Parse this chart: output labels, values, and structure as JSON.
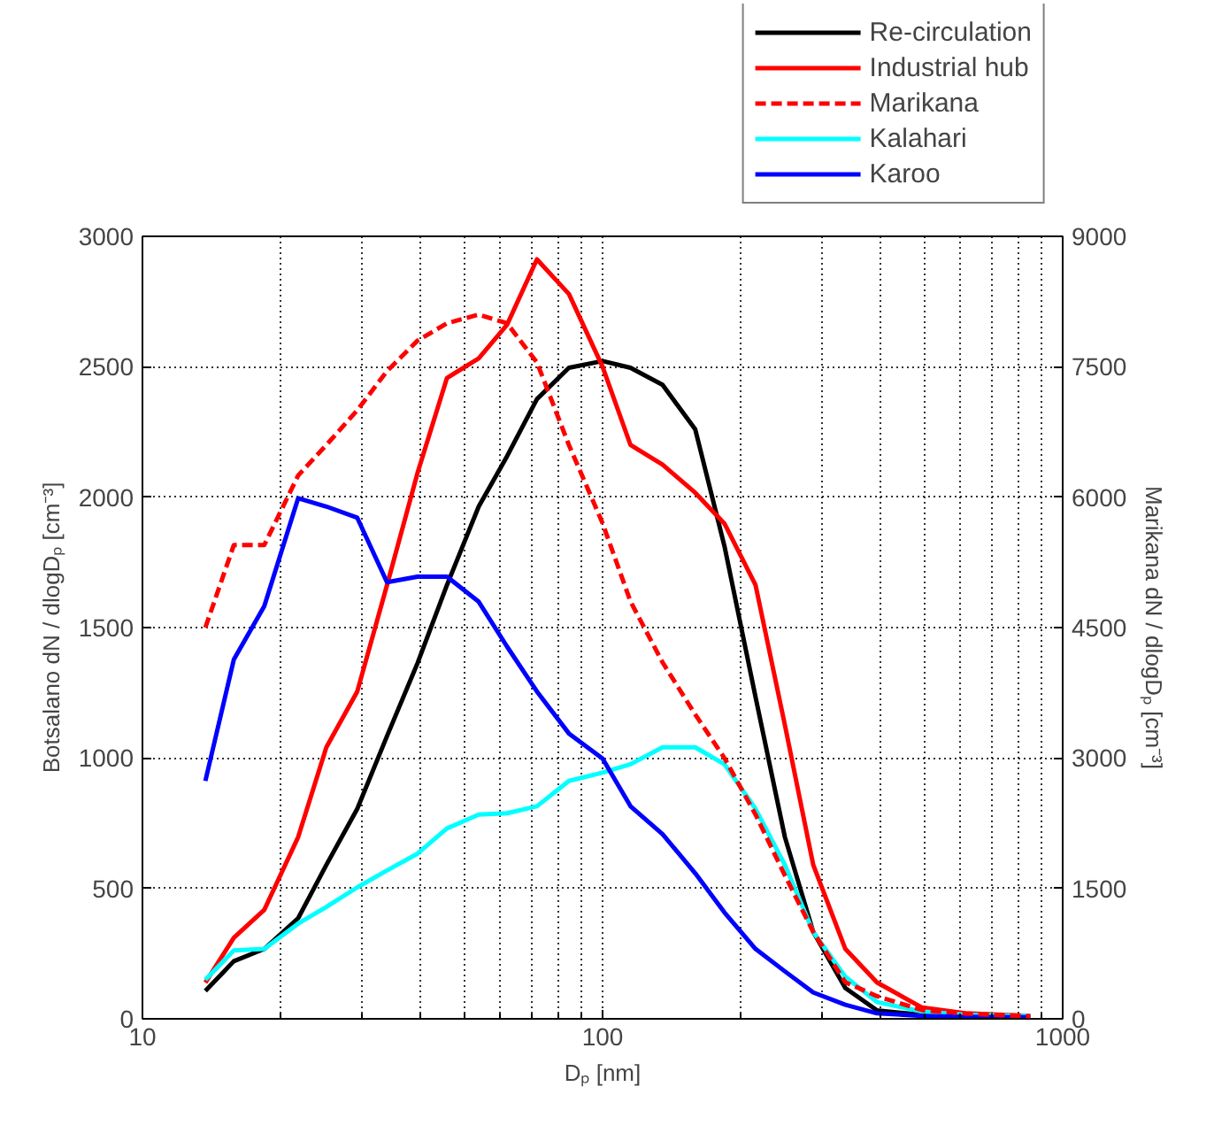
{
  "chart_data": {
    "type": "line",
    "xlabel": "Dₚ [nm]",
    "ylabel": "Botsalano dN / dlogDₚ [cm⁻³]",
    "y2label": "Marikana dN / dlogDₚ [cm⁻³]",
    "log": "x",
    "grid": true,
    "legend": "top right",
    "line_style": "solid",
    "xlim": [
      10,
      1000
    ],
    "xticks": [
      10,
      100,
      1000
    ],
    "ylim": [
      0,
      3000
    ],
    "yticks": [
      0,
      500,
      1000,
      1500,
      2000,
      2500,
      3000
    ],
    "y2lim": [
      0,
      9000
    ],
    "y2ticks": [
      0,
      1500,
      3000,
      4500,
      6000,
      7500,
      9000
    ],
    "x": [
      13.7,
      15.8,
      18.4,
      21.8,
      25.1,
      29.3,
      34,
      39.6,
      45.9,
      53.8,
      62,
      72,
      84.5,
      100,
      115,
      135,
      159,
      184,
      215,
      249,
      287,
      337,
      395,
      495,
      615,
      850
    ],
    "series": [
      {
        "name": "Re-circulation",
        "color": "#000000",
        "values": [
          107,
          221,
          268,
          386,
          590,
          805,
          1084,
          1363,
          1663,
          1964,
          2157,
          2376,
          2496,
          2522,
          2496,
          2431,
          2260,
          1813,
          1234,
          697,
          333,
          118,
          32,
          15,
          10,
          6
        ]
      },
      {
        "name": "Industrial hub",
        "color": "#ff0000",
        "values": [
          139,
          311,
          418,
          697,
          1041,
          1255,
          1663,
          2092,
          2457,
          2532,
          2661,
          2912,
          2779,
          2500,
          2200,
          2125,
          2017,
          1899,
          1663,
          1127,
          590,
          268,
          139,
          43,
          21,
          11
        ]
      },
      {
        "name": "Marikana",
        "color": "#ff0000",
        "axis": "y2",
        "line_style": "dashed",
        "values": [
          4500,
          5450,
          5450,
          6250,
          6600,
          7000,
          7450,
          7800,
          8000,
          8100,
          8000,
          7550,
          6600,
          5700,
          4800,
          4100,
          3500,
          3000,
          2350,
          1650,
          1000,
          420,
          260,
          100,
          60,
          30
        ]
      },
      {
        "name": "Kalahari",
        "color": "#00ffff",
        "values": [
          150,
          262,
          268,
          365,
          429,
          504,
          569,
          633,
          730,
          783,
          788,
          815,
          912,
          944,
          976,
          1041,
          1041,
          976,
          805,
          590,
          333,
          161,
          64,
          28,
          15,
          11
        ]
      },
      {
        "name": "Karoo",
        "color": "#0000ff",
        "values": [
          912,
          1378,
          1582,
          1996,
          1964,
          1921,
          1674,
          1695,
          1695,
          1599,
          1427,
          1255,
          1094,
          998,
          815,
          708,
          558,
          408,
          268,
          182,
          101,
          54,
          21,
          11,
          8,
          6
        ]
      }
    ]
  }
}
